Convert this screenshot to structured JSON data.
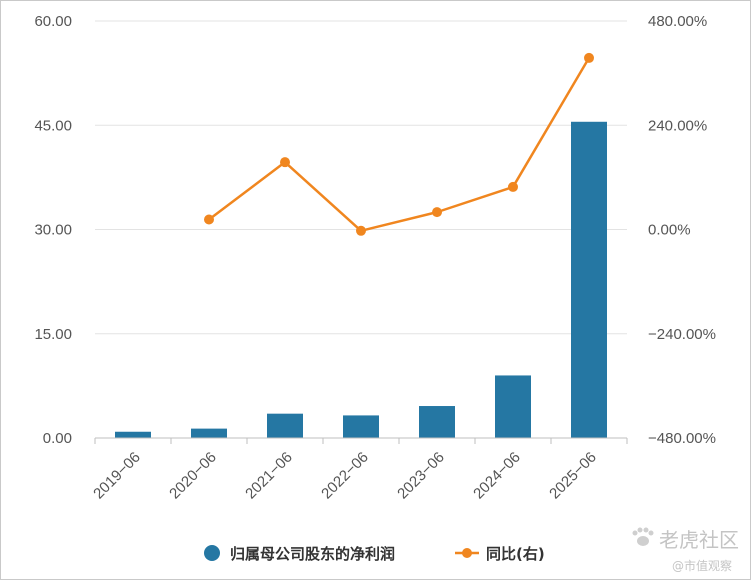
{
  "chart_data": {
    "type": "bar",
    "categories": [
      "2019-06",
      "2020-06",
      "2021-06",
      "2022-06",
      "2023-06",
      "2024-06",
      "2025-06"
    ],
    "series": [
      {
        "name": "归属母公司股东的净利润",
        "type": "bar",
        "axis": "left",
        "color": "#2577a3",
        "values": [
          0.9,
          1.35,
          3.5,
          3.25,
          4.6,
          9.0,
          45.5
        ]
      },
      {
        "name": "同比(右)",
        "type": "line",
        "axis": "right",
        "color": "#f0861f",
        "values": [
          null,
          23,
          155,
          -3,
          40,
          98,
          395
        ]
      }
    ],
    "y_left": {
      "lim": [
        0,
        60
      ],
      "ticks": [
        "0.00",
        "15.00",
        "30.00",
        "45.00",
        "60.00"
      ]
    },
    "y_right": {
      "lim": [
        -480,
        480
      ],
      "ticks": [
        "-480.00%",
        "-240.00%",
        "0.00%",
        "240.00%",
        "480.00%"
      ]
    },
    "grid": true,
    "legend_position": "bottom"
  },
  "legend": {
    "bar_label": "归属母公司股东的净利润",
    "line_label": "同比(右)"
  },
  "watermark": {
    "brand": "老虎社区",
    "sub": "@市值观察"
  }
}
